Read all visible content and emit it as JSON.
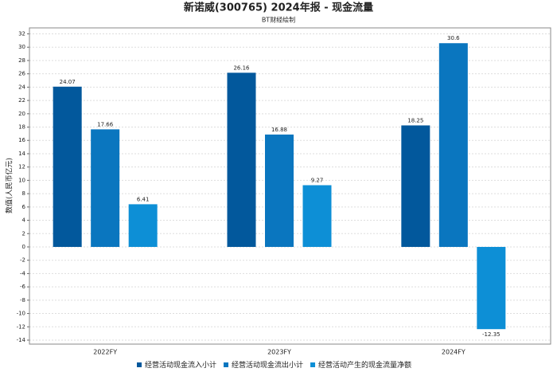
{
  "chart_data": {
    "type": "bar",
    "title": "新诺威(300765) 2024年报 - 现金流量",
    "subtitle": "BT财经绘制",
    "y_label": "数值(人民币亿元)",
    "categories": [
      "2022FY",
      "2023FY",
      "2024FY"
    ],
    "series": [
      {
        "name": "经营活动现金流入小计",
        "color": "#02589c",
        "values": [
          24.07,
          26.16,
          18.25
        ]
      },
      {
        "name": "经营活动现金流出小计",
        "color": "#0a76bf",
        "values": [
          17.66,
          16.88,
          30.6
        ]
      },
      {
        "name": "经营活动产生的现金流量净额",
        "color": "#0d8fd6",
        "values": [
          6.41,
          9.27,
          -12.35
        ]
      }
    ],
    "ylim": [
      -14.6,
      32.9
    ],
    "yticks": [
      -14,
      -12,
      -10,
      -8,
      -6,
      -4,
      -2,
      0,
      2,
      4,
      6,
      8,
      10,
      12,
      14,
      16,
      18,
      20,
      22,
      24,
      26,
      28,
      30,
      32
    ],
    "grid": true,
    "legend": "bottom"
  }
}
